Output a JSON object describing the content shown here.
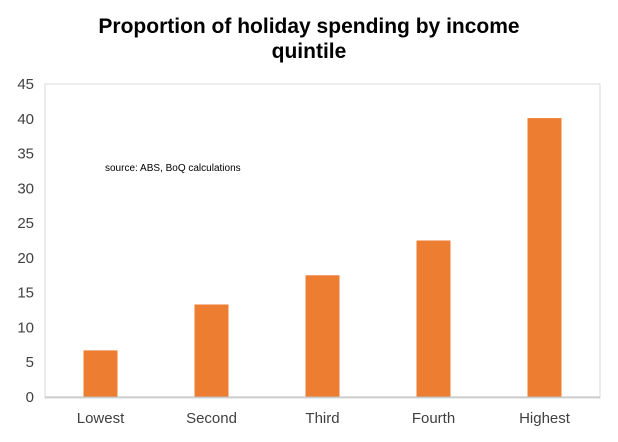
{
  "chart_data": {
    "type": "bar",
    "title_line1": "Proportion of holiday spending by income",
    "title_line2": "quintile",
    "annotation": "source:  ABS, BoQ calculations",
    "categories": [
      "Lowest",
      "Second",
      "Third",
      "Fourth",
      "Highest"
    ],
    "values": [
      6.7,
      13.3,
      17.5,
      22.5,
      40.1
    ],
    "ylim": [
      0,
      45
    ],
    "yticks": [
      0,
      5,
      10,
      15,
      20,
      25,
      30,
      35,
      40,
      45
    ],
    "xlabel": "",
    "ylabel": "",
    "grid": false,
    "legend": "none",
    "bar_color": "#ED7D31"
  }
}
